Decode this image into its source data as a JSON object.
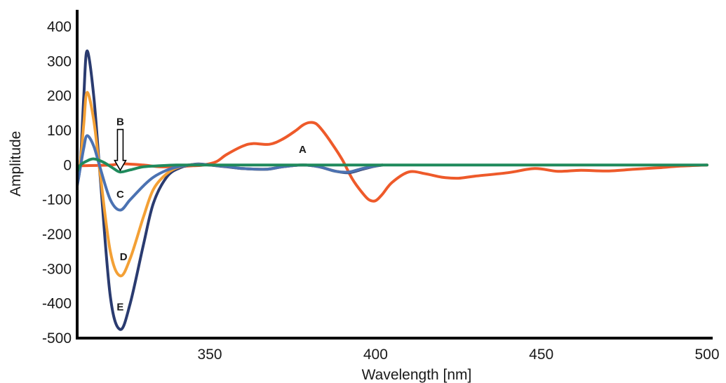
{
  "chart_data": {
    "type": "line",
    "title": "",
    "xlabel": "Wavelength [nm]",
    "ylabel": "Amplitude",
    "xlim": [
      310,
      500
    ],
    "ylim": [
      -500,
      400
    ],
    "x_ticks": [
      {
        "value": 350,
        "label": "350"
      },
      {
        "value": 400,
        "label": "400"
      },
      {
        "value": 450,
        "label": "450"
      },
      {
        "value": 500,
        "label": "500"
      }
    ],
    "y_ticks": [
      {
        "value": 400,
        "label": "400"
      },
      {
        "value": 300,
        "label": "300"
      },
      {
        "value": 200,
        "label": "200"
      },
      {
        "value": 100,
        "label": "100"
      },
      {
        "value": 0,
        "label": "0"
      },
      {
        "value": -100,
        "label": "-100"
      },
      {
        "value": -200,
        "label": "-200"
      },
      {
        "value": -300,
        "label": "-300"
      },
      {
        "value": -400,
        "label": "-400"
      },
      {
        "value": -500,
        "label": "-500"
      }
    ],
    "grid": false,
    "legend": "none",
    "series": [
      {
        "name": "A",
        "color": "#ee5a2a",
        "x": [
          310,
          320,
          323,
          330,
          335,
          340,
          345,
          348,
          352,
          355,
          360,
          363,
          368,
          372,
          376,
          378,
          380,
          382,
          384,
          387,
          390,
          393,
          396,
          398,
          400,
          402,
          405,
          410,
          415,
          420,
          425,
          430,
          440,
          448,
          455,
          462,
          470,
          478,
          485,
          492,
          500
        ],
        "y": [
          -2,
          0,
          4,
          0,
          -5,
          -4,
          -2,
          0,
          10,
          30,
          55,
          62,
          60,
          75,
          100,
          115,
          123,
          120,
          100,
          60,
          15,
          -40,
          -80,
          -100,
          -103,
          -85,
          -50,
          -20,
          -25,
          -35,
          -38,
          -32,
          -22,
          -10,
          -18,
          -15,
          -17,
          -12,
          -8,
          -3,
          0
        ]
      },
      {
        "name": "B",
        "color": "#1f8a5c",
        "x": [
          310,
          311,
          313,
          315,
          318,
          321,
          323,
          326,
          330,
          335,
          340,
          350,
          360,
          370,
          380,
          390,
          400,
          420,
          450,
          480,
          500
        ],
        "y": [
          -20,
          0,
          12,
          18,
          8,
          -10,
          -20,
          -14,
          -5,
          -2,
          0,
          0,
          0,
          0,
          0,
          0,
          0,
          0,
          0,
          0,
          0
        ]
      },
      {
        "name": "C",
        "color": "#4b72b2",
        "x": [
          310,
          311,
          312,
          313,
          315,
          317,
          320,
          323,
          326,
          330,
          333,
          337,
          341,
          346,
          350,
          355,
          360,
          367,
          372,
          378,
          383,
          388,
          392,
          396,
          400,
          402
        ],
        "y": [
          -60,
          -5,
          50,
          85,
          55,
          -10,
          -100,
          -130,
          -100,
          -60,
          -35,
          -15,
          -4,
          2,
          0,
          -4,
          -10,
          -12,
          -5,
          0,
          -5,
          -18,
          -20,
          -10,
          -3,
          0
        ]
      },
      {
        "name": "D",
        "color": "#f3a035",
        "x": [
          310,
          311,
          312,
          313,
          315,
          317,
          320,
          323,
          326,
          330,
          333,
          337,
          341,
          346,
          350,
          355,
          360,
          367,
          372,
          378,
          383,
          388,
          392,
          396,
          400,
          402
        ],
        "y": [
          -60,
          10,
          120,
          210,
          130,
          -30,
          -250,
          -320,
          -270,
          -150,
          -70,
          -25,
          -5,
          2,
          0,
          -4,
          -10,
          -12,
          -5,
          0,
          -5,
          -18,
          -20,
          -10,
          -3,
          0
        ]
      },
      {
        "name": "E",
        "color": "#2a3b70",
        "x": [
          310,
          311,
          312,
          313,
          315,
          317,
          320,
          323,
          326,
          330,
          333,
          337,
          341,
          346,
          350,
          355,
          360,
          367,
          372,
          378,
          383,
          388,
          392,
          396,
          400,
          402
        ],
        "y": [
          -60,
          10,
          200,
          330,
          200,
          -40,
          -380,
          -475,
          -400,
          -230,
          -110,
          -35,
          -8,
          3,
          0,
          -5,
          -10,
          -12,
          -5,
          0,
          -5,
          -18,
          -22,
          -12,
          -3,
          0
        ]
      }
    ],
    "annotations": [
      {
        "text": "A",
        "x": 378,
        "y": 35,
        "series": "A"
      },
      {
        "text": "B",
        "x": 323,
        "y": 115,
        "series": "B",
        "arrow": true
      },
      {
        "text": "C",
        "x": 323,
        "y": -95,
        "series": "C"
      },
      {
        "text": "D",
        "x": 324,
        "y": -275,
        "series": "D"
      },
      {
        "text": "E",
        "x": 323,
        "y": -420,
        "series": "E"
      }
    ]
  }
}
